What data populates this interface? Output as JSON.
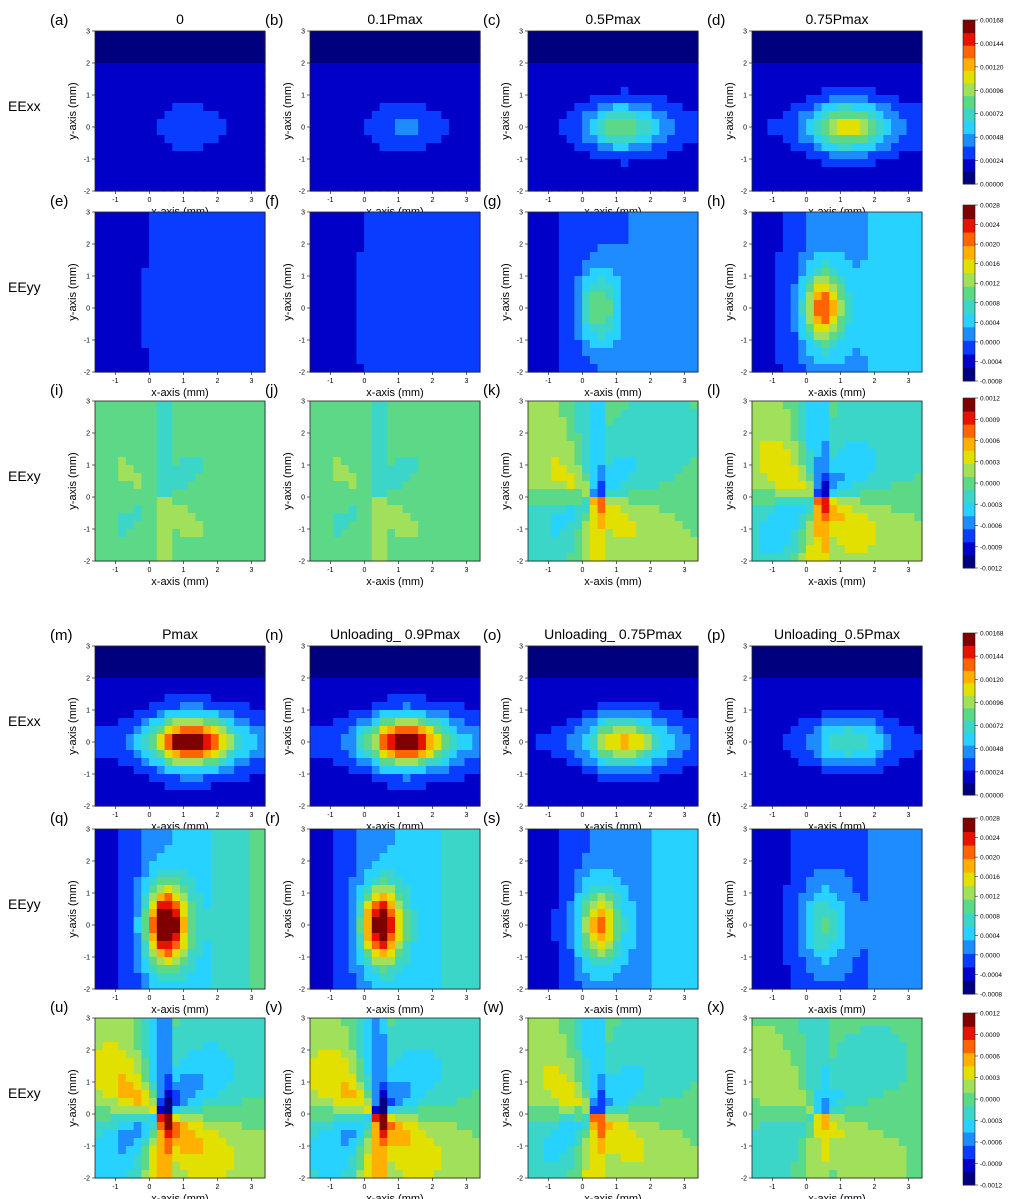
{
  "colormap": [
    "#00007f",
    "#0000c8",
    "#0a3cff",
    "#1e8cff",
    "#28d2ff",
    "#3cd6c8",
    "#5cd886",
    "#a0e05a",
    "#e2e000",
    "#ffb000",
    "#ff6400",
    "#e81200",
    "#7f0000"
  ],
  "row_labels": [
    "EExx",
    "EEyy",
    "EExy",
    "EExx",
    "EEyy",
    "EExy"
  ],
  "chart_data": {
    "type": "heatmap",
    "description_axes": {
      "xlabel": "x-axis (mm)",
      "ylabel": "y-axis (mm)",
      "xlim": [
        -1.6,
        3.4
      ],
      "ylim": [
        -2,
        3
      ],
      "xticks": [
        "-1",
        "0",
        "1",
        "2",
        "3"
      ],
      "yticks": [
        "3",
        "2",
        "1",
        "0",
        "-1",
        "-2"
      ]
    },
    "panels": [
      {
        "letter": "(a)",
        "title": "0",
        "field": "EExx",
        "level": 0.15
      },
      {
        "letter": "(b)",
        "title": "0.1Pmax",
        "field": "EExx",
        "level": 0.17
      },
      {
        "letter": "(c)",
        "title": "0.5Pmax",
        "field": "EExx",
        "level": 0.45
      },
      {
        "letter": "(d)",
        "title": "0.75Pmax",
        "field": "EExx",
        "level": 0.6
      },
      {
        "letter": "(e)",
        "title": "",
        "field": "EEyy",
        "level": 0.05
      },
      {
        "letter": "(f)",
        "title": "",
        "field": "EEyy",
        "level": 0.07
      },
      {
        "letter": "(g)",
        "title": "",
        "field": "EEyy",
        "level": 0.4
      },
      {
        "letter": "(h)",
        "title": "",
        "field": "EEyy",
        "level": 0.7
      },
      {
        "letter": "(i)",
        "title": "",
        "field": "EExy",
        "level": 0.2
      },
      {
        "letter": "(j)",
        "title": "",
        "field": "EExy",
        "level": 0.2
      },
      {
        "letter": "(k)",
        "title": "",
        "field": "EExy",
        "level": 0.6
      },
      {
        "letter": "(l)",
        "title": "",
        "field": "EExy",
        "level": 0.8
      },
      {
        "letter": "(m)",
        "title": "Pmax",
        "field": "EExx",
        "level": 1.0
      },
      {
        "letter": "(n)",
        "title": "Unloading_ 0.9Pmax",
        "field": "EExx",
        "level": 0.95
      },
      {
        "letter": "(o)",
        "title": "Unloading_ 0.75Pmax",
        "field": "EExx",
        "level": 0.65
      },
      {
        "letter": "(p)",
        "title": "Unloading_0.5Pmax",
        "field": "EExx",
        "level": 0.4
      },
      {
        "letter": "(q)",
        "title": "",
        "field": "EEyy",
        "level": 1.0
      },
      {
        "letter": "(r)",
        "title": "",
        "field": "EEyy",
        "level": 0.92
      },
      {
        "letter": "(s)",
        "title": "",
        "field": "EEyy",
        "level": 0.65
      },
      {
        "letter": "(t)",
        "title": "",
        "field": "EEyy",
        "level": 0.35
      },
      {
        "letter": "(u)",
        "title": "",
        "field": "EExy",
        "level": 1.0
      },
      {
        "letter": "(v)",
        "title": "",
        "field": "EExy",
        "level": 0.92
      },
      {
        "letter": "(w)",
        "title": "",
        "field": "EExy",
        "level": 0.7
      },
      {
        "letter": "(x)",
        "title": "",
        "field": "EExy",
        "level": 0.45
      }
    ],
    "colorbars": [
      {
        "field": "EExx",
        "ticks": [
          "0.00168",
          "0.00144",
          "0.00120",
          "0.00096",
          "0.00072",
          "0.00048",
          "0.00024",
          "0.00000"
        ]
      },
      {
        "field": "EEyy",
        "ticks": [
          "0.0028",
          "0.0024",
          "0.0020",
          "0.0016",
          "0.0012",
          "0.0008",
          "0.0004",
          "0.0000",
          "-0.0004",
          "-0.0008"
        ]
      },
      {
        "field": "EExy",
        "ticks": [
          "0.0012",
          "0.0009",
          "0.0006",
          "0.0003",
          "0.0000",
          "-0.0003",
          "-0.0006",
          "-0.0009",
          "-0.0012"
        ]
      },
      {
        "field": "EExx",
        "ticks": [
          "0.00168",
          "0.00144",
          "0.00120",
          "0.00096",
          "0.00072",
          "0.00048",
          "0.00024",
          "0.00000"
        ]
      },
      {
        "field": "EEyy",
        "ticks": [
          "0.0028",
          "0.0024",
          "0.0020",
          "0.0016",
          "0.0012",
          "0.0008",
          "0.0004",
          "0.0000",
          "-0.0004",
          "-0.0008"
        ]
      },
      {
        "field": "EExy",
        "ticks": [
          "0.0012",
          "0.0009",
          "0.0006",
          "0.0003",
          "0.0000",
          "-0.0003",
          "-0.0006",
          "-0.0009",
          "-0.0012"
        ]
      }
    ]
  }
}
